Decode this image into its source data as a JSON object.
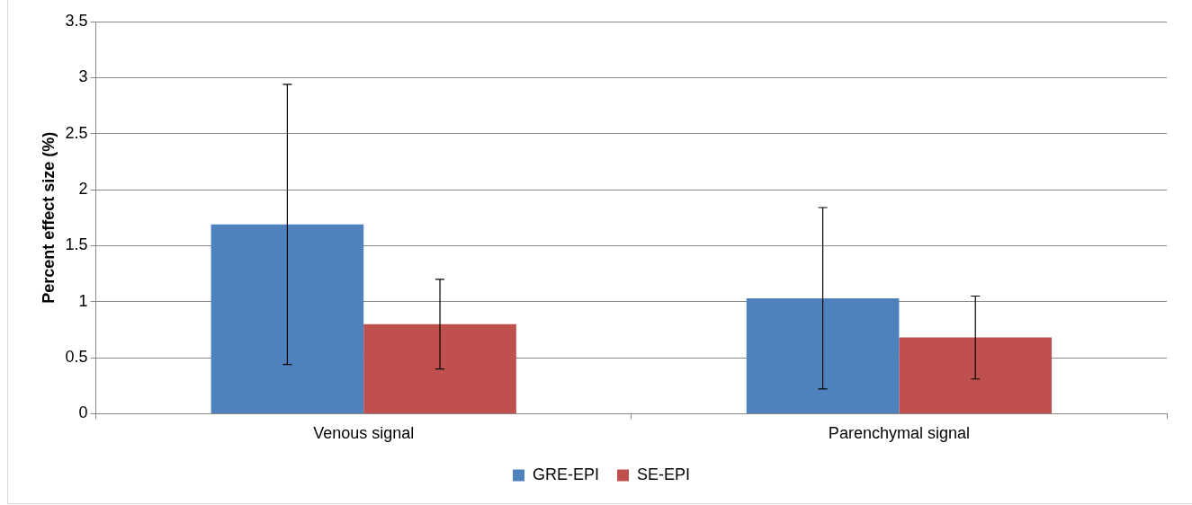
{
  "chart_data": {
    "type": "bar",
    "ylabel": "Percent effect size (%)",
    "categories": [
      "Venous signal",
      "Parenchymal signal"
    ],
    "series": [
      {
        "name": "GRE-EPI",
        "color": "#4f81bd",
        "values": [
          1.69,
          1.03
        ],
        "errors": [
          1.25,
          0.81
        ]
      },
      {
        "name": "SE-EPI",
        "color": "#c0504d",
        "values": [
          0.8,
          0.68
        ],
        "errors": [
          0.4,
          0.37
        ]
      }
    ],
    "ylim": [
      0,
      3.5
    ],
    "yticks": [
      0,
      0.5,
      1,
      1.5,
      2,
      2.5,
      3,
      3.5
    ],
    "grid": "y",
    "legend": "bottom"
  }
}
